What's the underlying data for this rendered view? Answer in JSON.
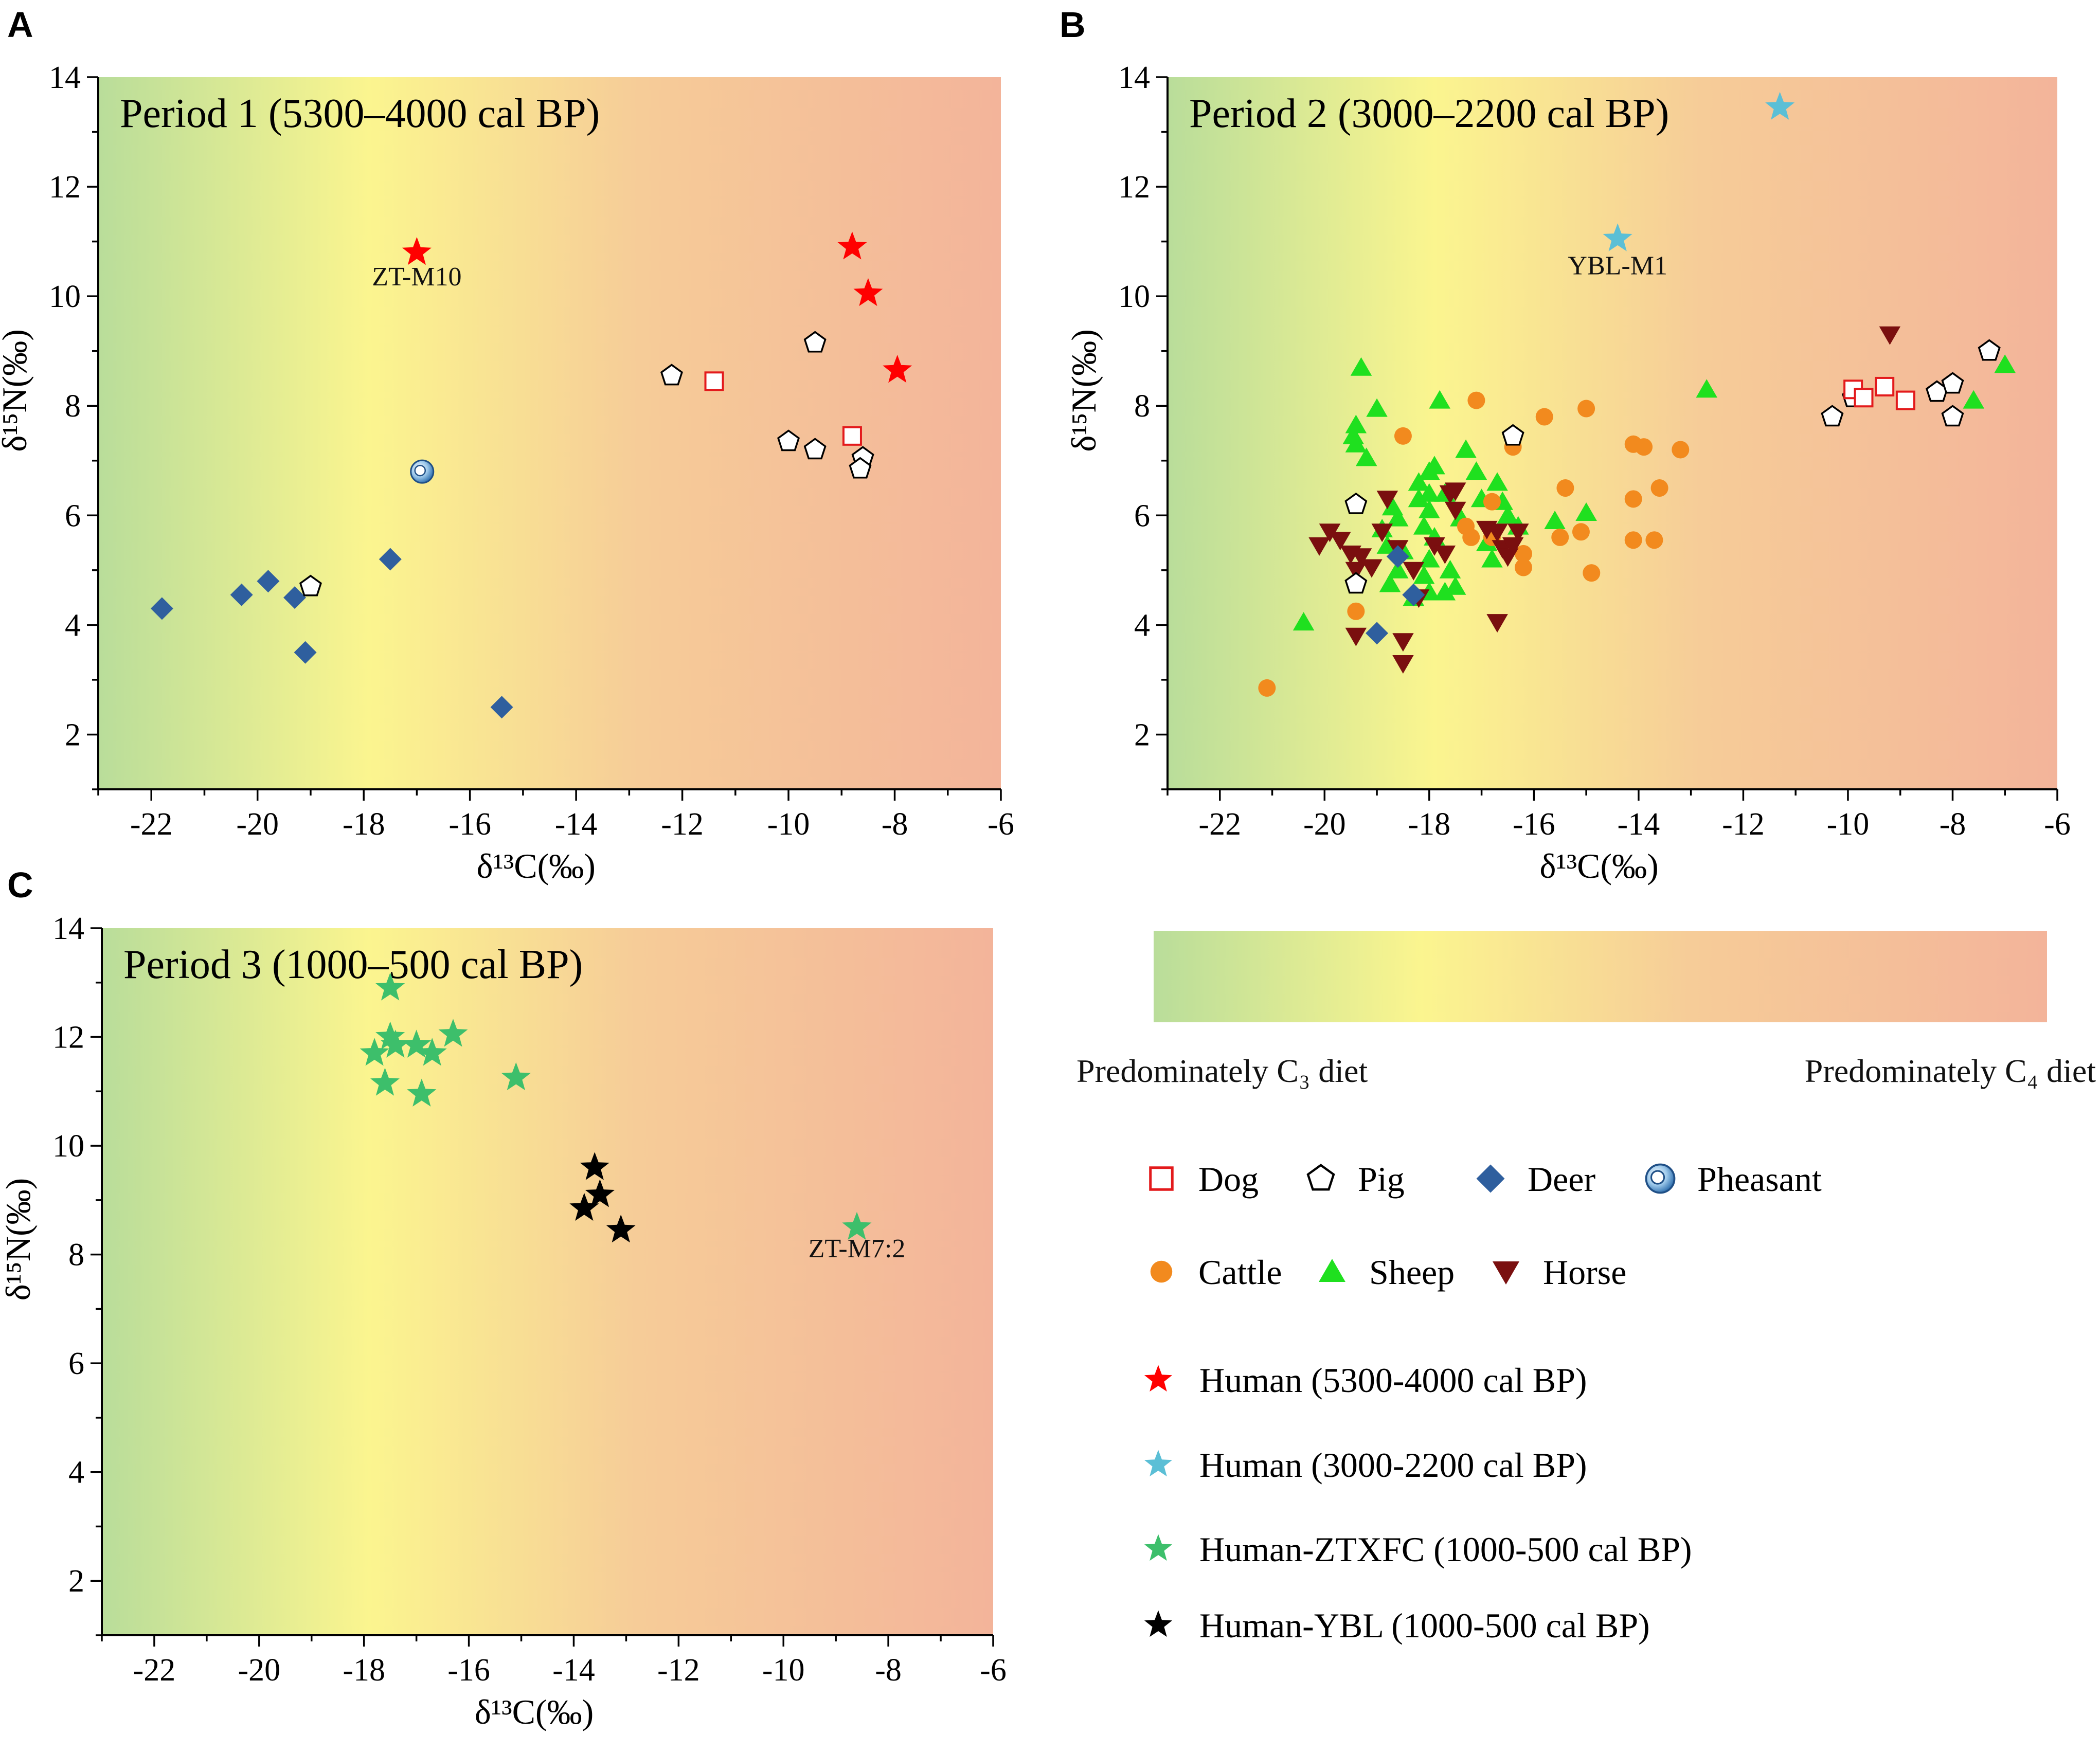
{
  "figure": {
    "legend": {
      "gradient_left": "Predominately C₃ diet",
      "gradient_right": "Predominately C₄ diet",
      "items": [
        {
          "key": "dog",
          "label": "Dog"
        },
        {
          "key": "pig",
          "label": "Pig"
        },
        {
          "key": "deer",
          "label": "Deer"
        },
        {
          "key": "pheasant",
          "label": "Pheasant"
        },
        {
          "key": "cattle",
          "label": "Cattle"
        },
        {
          "key": "sheep",
          "label": "Sheep"
        },
        {
          "key": "horse",
          "label": "Horse"
        },
        {
          "key": "human_p1",
          "label": "Human (5300-4000 cal BP)"
        },
        {
          "key": "human_p2",
          "label": "Human (3000-2200 cal BP)"
        },
        {
          "key": "human_ztxfc",
          "label": "Human-ZTXFC (1000-500 cal BP)"
        },
        {
          "key": "human_ybl",
          "label": "Human-YBL (1000-500 cal BP)"
        }
      ]
    },
    "colors": {
      "dog": "#e31a1c",
      "pig": "#000000",
      "deer": "#2f5f9e",
      "pheasant": "#5b9bd5",
      "cattle": "#f28a1e",
      "sheep": "#1fe01f",
      "horse": "#7a0f0f",
      "human_p1": "#ff0000",
      "human_p2": "#5bbfd6",
      "human_ztxfc": "#3dbf6b",
      "human_ybl": "#000000",
      "grad_green": "#b9dd9a",
      "grad_yellow": "#fbf58f",
      "grad_orange": "#f6cc98",
      "grad_red": "#f3b49a"
    },
    "icons": {
      "dog": "open-square-icon",
      "pig": "open-pentagon-icon",
      "deer": "diamond-icon",
      "pheasant": "pheasant-circle-icon",
      "cattle": "circle-icon",
      "sheep": "triangle-icon",
      "horse": "inverted-triangle-icon",
      "human": "star-icon"
    }
  },
  "chart_data": [
    {
      "panel_letter": "A",
      "type": "scatter",
      "title": "Period 1 (5300–4000 cal BP)",
      "xlabel": "δ¹³C(‰)",
      "ylabel": "δ¹⁵N(‰)",
      "xlim": [
        -23,
        -6
      ],
      "ylim": [
        1,
        14
      ],
      "xticks": [
        -22,
        -20,
        -18,
        -16,
        -14,
        -12,
        -10,
        -8,
        -6
      ],
      "yticks": [
        2,
        4,
        6,
        8,
        10,
        12,
        14
      ],
      "series": [
        {
          "name": "Deer",
          "key": "deer",
          "points": [
            [
              -21.8,
              4.3
            ],
            [
              -20.3,
              4.55
            ],
            [
              -19.8,
              4.8
            ],
            [
              -19.3,
              4.5
            ],
            [
              -19.1,
              3.5
            ],
            [
              -17.5,
              5.2
            ],
            [
              -15.4,
              2.5
            ]
          ]
        },
        {
          "name": "Pig",
          "key": "pig",
          "points": [
            [
              -19.0,
              4.7
            ],
            [
              -12.2,
              8.55
            ],
            [
              -9.5,
              9.15
            ],
            [
              -10.0,
              7.35
            ],
            [
              -9.5,
              7.2
            ],
            [
              -8.6,
              7.05
            ],
            [
              -8.65,
              6.85
            ]
          ]
        },
        {
          "name": "Dog",
          "key": "dog",
          "points": [
            [
              -11.4,
              8.45
            ],
            [
              -8.8,
              7.45
            ]
          ]
        },
        {
          "name": "Pheasant",
          "key": "pheasant",
          "points": [
            [
              -16.9,
              6.8
            ]
          ]
        },
        {
          "name": "Human (5300-4000 cal BP)",
          "key": "human_p1",
          "points": [
            [
              -17.0,
              10.8
            ],
            [
              -8.8,
              10.9
            ],
            [
              -8.5,
              10.05
            ],
            [
              -7.95,
              8.65
            ]
          ]
        }
      ],
      "annotations": [
        {
          "text": "ZT-M10",
          "x": -17.0,
          "y": 10.2
        }
      ]
    },
    {
      "panel_letter": "B",
      "type": "scatter",
      "title": "Period 2 (3000–2200 cal BP)",
      "xlabel": "δ¹³C(‰)",
      "ylabel": "δ¹⁵N(‰)",
      "xlim": [
        -23,
        -6
      ],
      "ylim": [
        1,
        14
      ],
      "xticks": [
        -22,
        -20,
        -18,
        -16,
        -14,
        -12,
        -10,
        -8,
        -6
      ],
      "yticks": [
        2,
        4,
        6,
        8,
        10,
        12,
        14
      ],
      "series": [
        {
          "name": "Sheep",
          "key": "sheep",
          "points": [
            [
              -19.3,
              8.7
            ],
            [
              -19.0,
              7.95
            ],
            [
              -19.4,
              7.65
            ],
            [
              -19.45,
              7.45
            ],
            [
              -19.4,
              7.3
            ],
            [
              -19.2,
              7.05
            ],
            [
              -18.7,
              6.15
            ],
            [
              -18.6,
              5.95
            ],
            [
              -18.9,
              5.75
            ],
            [
              -18.8,
              5.45
            ],
            [
              -18.5,
              5.35
            ],
            [
              -18.6,
              5.0
            ],
            [
              -18.75,
              4.75
            ],
            [
              -18.2,
              6.3
            ],
            [
              -18.2,
              6.6
            ],
            [
              -18.0,
              6.8
            ],
            [
              -18.0,
              6.4
            ],
            [
              -18.0,
              6.1
            ],
            [
              -18.1,
              5.8
            ],
            [
              -18.0,
              5.2
            ],
            [
              -18.1,
              4.9
            ],
            [
              -18.0,
              4.6
            ],
            [
              -17.9,
              6.9
            ],
            [
              -17.9,
              5.6
            ],
            [
              -17.8,
              8.1
            ],
            [
              -17.7,
              6.4
            ],
            [
              -17.6,
              5.0
            ],
            [
              -17.5,
              4.7
            ],
            [
              -17.4,
              5.95
            ],
            [
              -17.3,
              7.2
            ],
            [
              -17.1,
              6.8
            ],
            [
              -17.0,
              6.3
            ],
            [
              -16.9,
              5.5
            ],
            [
              -16.8,
              5.2
            ],
            [
              -16.7,
              6.6
            ],
            [
              -16.6,
              6.25
            ],
            [
              -16.5,
              6.0
            ],
            [
              -16.3,
              5.8
            ],
            [
              -18.3,
              4.5
            ],
            [
              -17.7,
              4.6
            ],
            [
              -15.6,
              5.9
            ],
            [
              -15.0,
              6.05
            ],
            [
              -20.4,
              4.05
            ],
            [
              -12.7,
              8.3
            ],
            [
              -7.6,
              8.1
            ],
            [
              -7.0,
              8.75
            ]
          ]
        },
        {
          "name": "Cattle",
          "key": "cattle",
          "points": [
            [
              -21.1,
              2.85
            ],
            [
              -19.4,
              4.25
            ],
            [
              -18.5,
              7.45
            ],
            [
              -17.3,
              5.8
            ],
            [
              -17.2,
              5.6
            ],
            [
              -17.1,
              8.1
            ],
            [
              -16.8,
              5.6
            ],
            [
              -16.8,
              6.25
            ],
            [
              -16.4,
              7.25
            ],
            [
              -16.2,
              5.05
            ],
            [
              -16.2,
              5.3
            ],
            [
              -15.8,
              7.8
            ],
            [
              -15.5,
              5.6
            ],
            [
              -15.4,
              6.5
            ],
            [
              -15.1,
              5.7
            ],
            [
              -15.0,
              7.95
            ],
            [
              -14.9,
              4.95
            ],
            [
              -14.1,
              7.3
            ],
            [
              -13.9,
              7.25
            ],
            [
              -14.1,
              6.3
            ],
            [
              -14.1,
              5.55
            ],
            [
              -13.7,
              5.55
            ],
            [
              -13.6,
              6.5
            ],
            [
              -13.2,
              7.2
            ]
          ]
        },
        {
          "name": "Horse",
          "key": "horse",
          "points": [
            [
              -20.1,
              5.45
            ],
            [
              -19.9,
              5.7
            ],
            [
              -19.7,
              5.55
            ],
            [
              -19.5,
              5.3
            ],
            [
              -19.3,
              5.25
            ],
            [
              -19.4,
              5.0
            ],
            [
              -19.1,
              5.05
            ],
            [
              -18.9,
              5.7
            ],
            [
              -18.8,
              6.3
            ],
            [
              -18.6,
              5.4
            ],
            [
              -18.5,
              3.3
            ],
            [
              -18.5,
              3.7
            ],
            [
              -18.3,
              5.0
            ],
            [
              -18.2,
              4.5
            ],
            [
              -17.9,
              5.45
            ],
            [
              -17.7,
              5.3
            ],
            [
              -17.6,
              6.4
            ],
            [
              -17.5,
              6.1
            ],
            [
              -17.5,
              6.45
            ],
            [
              -16.9,
              5.75
            ],
            [
              -16.7,
              5.7
            ],
            [
              -16.6,
              5.4
            ],
            [
              -16.5,
              5.25
            ],
            [
              -16.4,
              5.45
            ],
            [
              -16.3,
              5.7
            ],
            [
              -16.7,
              4.05
            ],
            [
              -19.4,
              3.8
            ],
            [
              -9.2,
              9.3
            ]
          ]
        },
        {
          "name": "Deer",
          "key": "deer",
          "points": [
            [
              -19.0,
              3.85
            ],
            [
              -18.6,
              5.25
            ],
            [
              -18.3,
              4.55
            ]
          ]
        },
        {
          "name": "Pig",
          "key": "pig",
          "points": [
            [
              -19.4,
              6.2
            ],
            [
              -19.4,
              4.75
            ],
            [
              -16.4,
              7.45
            ],
            [
              -10.3,
              7.8
            ],
            [
              -9.9,
              8.15
            ],
            [
              -8.3,
              8.25
            ],
            [
              -8.0,
              8.4
            ],
            [
              -8.0,
              7.8
            ],
            [
              -7.3,
              9.0
            ]
          ]
        },
        {
          "name": "Dog",
          "key": "dog",
          "points": [
            [
              -9.9,
              8.3
            ],
            [
              -9.7,
              8.15
            ],
            [
              -9.3,
              8.35
            ],
            [
              -8.9,
              8.1
            ]
          ]
        },
        {
          "name": "Human (3000-2200 cal BP)",
          "key": "human_p2",
          "points": [
            [
              -11.3,
              13.45
            ],
            [
              -14.4,
              11.05
            ]
          ]
        }
      ],
      "annotations": [
        {
          "text": "YBL-M1",
          "x": -14.4,
          "y": 10.4
        }
      ]
    },
    {
      "panel_letter": "C",
      "type": "scatter",
      "title": "Period 3 (1000–500 cal BP)",
      "xlabel": "δ¹³C(‰)",
      "ylabel": "δ¹⁵N(‰)",
      "xlim": [
        -23,
        -6
      ],
      "ylim": [
        1,
        14
      ],
      "xticks": [
        -22,
        -20,
        -18,
        -16,
        -14,
        -12,
        -10,
        -8,
        -6
      ],
      "yticks": [
        2,
        4,
        6,
        8,
        10,
        12,
        14
      ],
      "series": [
        {
          "name": "Human-ZTXFC (1000-500 cal BP)",
          "key": "human_ztxfc",
          "points": [
            [
              -17.5,
              12.9
            ],
            [
              -17.5,
              12.0
            ],
            [
              -17.4,
              11.85
            ],
            [
              -17.8,
              11.7
            ],
            [
              -17.0,
              11.85
            ],
            [
              -16.7,
              11.7
            ],
            [
              -16.3,
              12.05
            ],
            [
              -17.6,
              11.15
            ],
            [
              -16.9,
              10.95
            ],
            [
              -15.1,
              11.25
            ],
            [
              -8.6,
              8.5
            ]
          ]
        },
        {
          "name": "Human-YBL (1000-500 cal BP)",
          "key": "human_ybl",
          "points": [
            [
              -13.6,
              9.6
            ],
            [
              -13.5,
              9.1
            ],
            [
              -13.8,
              8.85
            ],
            [
              -13.1,
              8.45
            ]
          ]
        }
      ],
      "annotations": [
        {
          "text": "ZT-M7:2",
          "x": -8.6,
          "y": 7.95
        }
      ]
    }
  ]
}
